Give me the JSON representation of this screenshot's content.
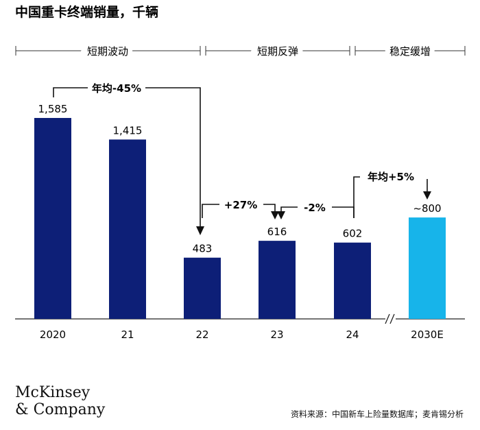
{
  "title": "中国重卡终端销量，千辆",
  "segments": [
    {
      "label": "短期波动"
    },
    {
      "label": "短期反弹"
    },
    {
      "label": "稳定缓增"
    }
  ],
  "chart_data": {
    "type": "bar",
    "title": "中国重卡终端销量，千辆",
    "categories": [
      "2020",
      "21",
      "22",
      "23",
      "24",
      "2030E"
    ],
    "values": [
      1585,
      1415,
      483,
      616,
      602,
      800
    ],
    "value_labels": [
      "1,585",
      "1,415",
      "483",
      "616",
      "602",
      "~800"
    ],
    "colors": [
      "#0d1f77",
      "#0d1f77",
      "#0d1f77",
      "#0d1f77",
      "#0d1f77",
      "#17b4ea"
    ],
    "ylim": [
      0,
      1750
    ],
    "axis_break_between": [
      "24",
      "2030E"
    ],
    "annotations": [
      {
        "text": "年均-45%",
        "from": "2020",
        "to": "22"
      },
      {
        "text": "+27%",
        "from": "22",
        "to": "23"
      },
      {
        "text": "-2%",
        "from": "23",
        "to": "24"
      },
      {
        "text": "年均+5%",
        "from": "24",
        "to": "2030E"
      }
    ]
  },
  "footer": {
    "logo_line1": "McKinsey",
    "logo_line2": "& Company",
    "source": "资料来源：中国新车上险量数据库；麦肯锡分析"
  }
}
